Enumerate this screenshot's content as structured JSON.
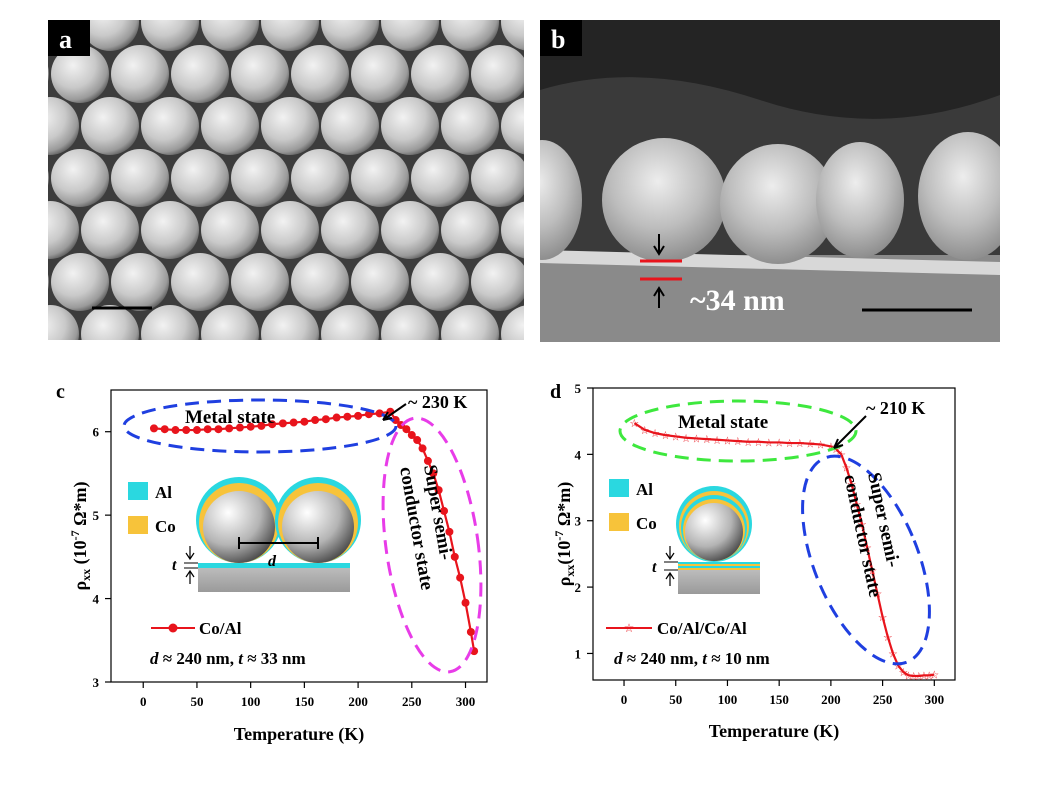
{
  "colors": {
    "series_red": "#e8141c",
    "sem_bg": "#8c8c8c",
    "blue_dash": "#1f3fe0",
    "magenta_dash": "#e83ce8",
    "green_dash": "#3ee83e",
    "al_cyan": "#2ad8e0",
    "co_gold": "#f7c33a"
  },
  "panel_a": {
    "label": "a",
    "icon": "sem-micrograph-top-view"
  },
  "panel_b": {
    "label": "b",
    "icon": "sem-micrograph-cross-section",
    "thickness_label": "~34 nm"
  },
  "panel_c": {
    "label": "c",
    "ylabel_symbol": "ρ",
    "ylabel_sub": "xx",
    "ylabel_unit_pre": " (10",
    "ylabel_exp": "-7",
    "ylabel_unit_post": " Ω*m)",
    "xlabel": "Temperature (K)",
    "legend_label": "Co/Al",
    "params": "d ≈ 240 nm, t ≈ 33 nm",
    "param_d": "d",
    "param_mid": " ≈ 240 nm, ",
    "param_t": "t",
    "param_end": " ≈ 33 nm",
    "annotations": {
      "metal": "Metal state",
      "transition": "~ 230 K",
      "super_line1": "Super semi-",
      "super_line2": "conductor state"
    },
    "schematic": {
      "al": "Al",
      "co": "Co",
      "t": "t",
      "d": "d"
    }
  },
  "panel_d": {
    "label": "d",
    "ylabel_symbol": "ρ",
    "ylabel_sub": "xx",
    "ylabel_unit_pre": "(10",
    "ylabel_exp": "-7",
    "ylabel_unit_post": " Ω*m)",
    "xlabel": "Temperature (K)",
    "legend_label": "Co/Al/Co/Al",
    "param_d": "d",
    "param_mid": " ≈ 240 nm, ",
    "param_t": "t",
    "param_end": " ≈ 10 nm",
    "annotations": {
      "metal": "Metal state",
      "transition": "~ 210 K",
      "super_line1": "Super semi-",
      "super_line2": "conductor state"
    },
    "schematic": {
      "al": "Al",
      "co": "Co",
      "t": "t"
    }
  },
  "chart_data": [
    {
      "panel": "c",
      "type": "line",
      "xlim": [
        -30,
        320
      ],
      "ylim": [
        3,
        6.5
      ],
      "xticks": [
        0,
        50,
        100,
        150,
        200,
        250,
        300
      ],
      "yticks": [
        3,
        4,
        5,
        6
      ],
      "xlabel": "Temperature (K)",
      "ylabel": "ρxx (10-7 Ω*m)",
      "series": [
        {
          "name": "Co/Al",
          "marker": "filled-circle",
          "x": [
            10,
            20,
            30,
            40,
            50,
            60,
            70,
            80,
            90,
            100,
            110,
            120,
            130,
            140,
            150,
            160,
            170,
            180,
            190,
            200,
            210,
            220,
            230,
            235,
            240,
            245,
            250,
            255,
            260,
            265,
            270,
            275,
            280,
            285,
            290,
            295,
            300,
            305,
            308
          ],
          "y": [
            6.04,
            6.03,
            6.02,
            6.02,
            6.02,
            6.03,
            6.03,
            6.04,
            6.05,
            6.06,
            6.07,
            6.09,
            6.1,
            6.11,
            6.12,
            6.14,
            6.15,
            6.17,
            6.18,
            6.19,
            6.21,
            6.22,
            6.24,
            6.14,
            6.08,
            6.03,
            5.96,
            5.9,
            5.8,
            5.65,
            5.5,
            5.3,
            5.05,
            4.8,
            4.5,
            4.25,
            3.95,
            3.6,
            3.37
          ]
        }
      ]
    },
    {
      "panel": "d",
      "type": "line",
      "xlim": [
        -30,
        320
      ],
      "ylim": [
        0.6,
        5
      ],
      "xticks": [
        0,
        50,
        100,
        150,
        200,
        250,
        300
      ],
      "yticks": [
        1,
        2,
        3,
        4,
        5
      ],
      "xlabel": "Temperature (K)",
      "ylabel": "ρxx(10-7 Ω*m)",
      "series": [
        {
          "name": "Co/Al/Co/Al",
          "marker": "open-star",
          "x": [
            10,
            20,
            30,
            40,
            50,
            60,
            70,
            80,
            90,
            100,
            110,
            120,
            130,
            140,
            150,
            160,
            170,
            180,
            190,
            200,
            205,
            210,
            215,
            220,
            225,
            230,
            235,
            240,
            245,
            250,
            255,
            260,
            265,
            270,
            275,
            280,
            285,
            290,
            295,
            300
          ],
          "y": [
            4.47,
            4.37,
            4.32,
            4.29,
            4.27,
            4.25,
            4.24,
            4.23,
            4.22,
            4.21,
            4.2,
            4.19,
            4.19,
            4.18,
            4.18,
            4.17,
            4.17,
            4.16,
            4.15,
            4.12,
            4.08,
            4.0,
            3.8,
            3.55,
            3.25,
            2.95,
            2.6,
            2.25,
            1.9,
            1.55,
            1.25,
            1.0,
            0.82,
            0.72,
            0.67,
            0.66,
            0.66,
            0.67,
            0.67,
            0.68
          ]
        }
      ]
    }
  ]
}
